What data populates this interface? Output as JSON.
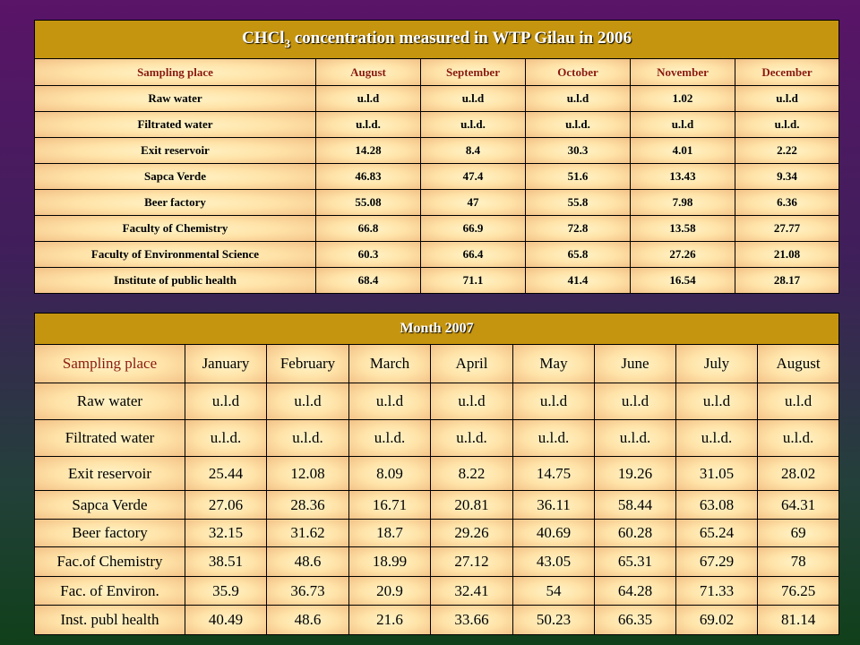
{
  "table2006": {
    "title_main": "CHCl",
    "title_sub": "3",
    "title_rest": " concentration measured in WTP Gilau in 2006",
    "headers": [
      "Sampling place",
      "August",
      "September",
      "October",
      "November",
      "December"
    ],
    "rows": [
      [
        "Raw water",
        "u.l.d",
        "u.l.d",
        "u.l.d",
        "1.02",
        "u.l.d"
      ],
      [
        "Filtrated water",
        "u.l.d.",
        "u.l.d.",
        "u.l.d.",
        "u.l.d",
        "u.l.d."
      ],
      [
        "Exit reservoir",
        "14.28",
        "8.4",
        "30.3",
        "4.01",
        "2.22"
      ],
      [
        "Sapca Verde",
        "46.83",
        "47.4",
        "51.6",
        "13.43",
        "9.34"
      ],
      [
        "Beer factory",
        "55.08",
        "47",
        "55.8",
        "7.98",
        "6.36"
      ],
      [
        "Faculty of Chemistry",
        "66.8",
        "66.9",
        "72.8",
        "13.58",
        "27.77"
      ],
      [
        "Faculty of Environmental Science",
        "60.3",
        "66.4",
        "65.8",
        "27.26",
        "21.08"
      ],
      [
        "Institute of public health",
        "68.4",
        "71.1",
        "41.4",
        "16.54",
        "28.17"
      ]
    ]
  },
  "table2007": {
    "title": "Month 2007",
    "headers": [
      "Sampling place",
      "January",
      "February",
      "March",
      "April",
      "May",
      "June",
      "July",
      "August"
    ],
    "rows": [
      [
        "Raw water",
        "u.l.d",
        "u.l.d",
        "u.l.d",
        "u.l.d",
        "u.l.d",
        "u.l.d",
        "u.l.d",
        "u.l.d"
      ],
      [
        "Filtrated water",
        "u.l.d.",
        "u.l.d.",
        "u.l.d.",
        "u.l.d.",
        "u.l.d.",
        "u.l.d.",
        "u.l.d.",
        "u.l.d."
      ],
      [
        "Exit reservoir",
        "25.44",
        "12.08",
        "8.09",
        "8.22",
        "14.75",
        "19.26",
        "31.05",
        "28.02"
      ],
      [
        "Sapca Verde",
        "27.06",
        "28.36",
        "16.71",
        "20.81",
        "36.11",
        "58.44",
        "63.08",
        "64.31"
      ],
      [
        "Beer factory",
        "32.15",
        "31.62",
        "18.7",
        "29.26",
        "40.69",
        "60.28",
        "65.24",
        "69"
      ],
      [
        "Fac.of Chemistry",
        "38.51",
        "48.6",
        "18.99",
        "27.12",
        "43.05",
        "65.31",
        "67.29",
        "78"
      ],
      [
        "Fac. of Environ.",
        "35.9",
        "36.73",
        "20.9",
        "32.41",
        "54",
        "64.28",
        "71.33",
        "76.25"
      ],
      [
        "Inst. publ health",
        "40.49",
        "48.6",
        "21.6",
        "33.66",
        "50.23",
        "66.35",
        "69.02",
        "81.14"
      ]
    ]
  },
  "colors": {
    "header_gold": "#c6950f",
    "header_label_red": "#8a1a10",
    "cell_cream": "#ffe3a8"
  }
}
